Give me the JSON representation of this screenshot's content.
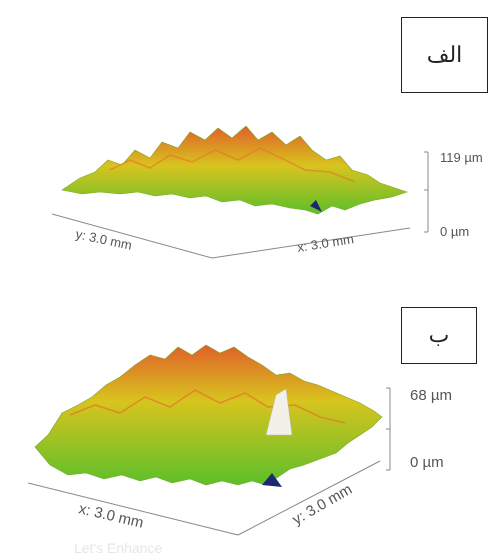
{
  "panels": [
    {
      "label": "الف",
      "x_axis": "x: 3.0 mm",
      "y_axis": "y: 3.0 mm",
      "z_max": "119 µm",
      "z_min": "0 µm"
    },
    {
      "label": "ب",
      "x_axis": "x: 3.0 mm",
      "y_axis": "y: 3.0 mm",
      "z_max": "68 µm",
      "z_min": "0 µm"
    }
  ],
  "watermark": "Let's Enhance",
  "colors": {
    "peak": "#e0602a",
    "mid": "#d8c41e",
    "low": "#5cbf2a",
    "deep": "#1b2a6e"
  }
}
